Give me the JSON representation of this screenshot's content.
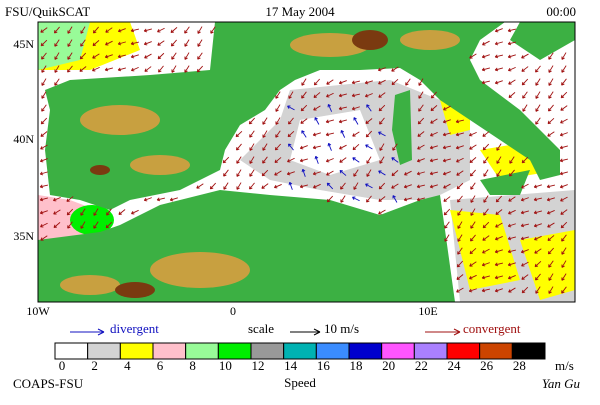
{
  "header": {
    "title": "FSU/QuikSCAT",
    "date": "17 May 2004",
    "time": "00:00"
  },
  "map": {
    "lat_labels": [
      "45N",
      "40N",
      "35N"
    ],
    "lon_labels": [
      "10W",
      "0",
      "10E"
    ]
  },
  "legend": {
    "divergent": "divergent",
    "scale": "scale",
    "scale_value": "10 m/s",
    "convergent": "convergent",
    "divergent_color": "#1010c0",
    "convergent_color": "#a01010"
  },
  "colorbar": {
    "labels": [
      0,
      2,
      4,
      6,
      8,
      10,
      12,
      14,
      16,
      18,
      20,
      22,
      24,
      26,
      28
    ],
    "unit": "m/s",
    "title": "Speed",
    "colors": [
      "#ffffff",
      "#d3d3d3",
      "#ffff00",
      "#ffc0cb",
      "#98fb98",
      "#00ee00",
      "#999999",
      "#00b2b2",
      "#3a8cff",
      "#0000cd",
      "#ff55ff",
      "#aa80ff",
      "#ff0000",
      "#cc4400",
      "#000000"
    ]
  },
  "footer": {
    "left": "COAPS-FSU",
    "right": "Yan Gu"
  }
}
